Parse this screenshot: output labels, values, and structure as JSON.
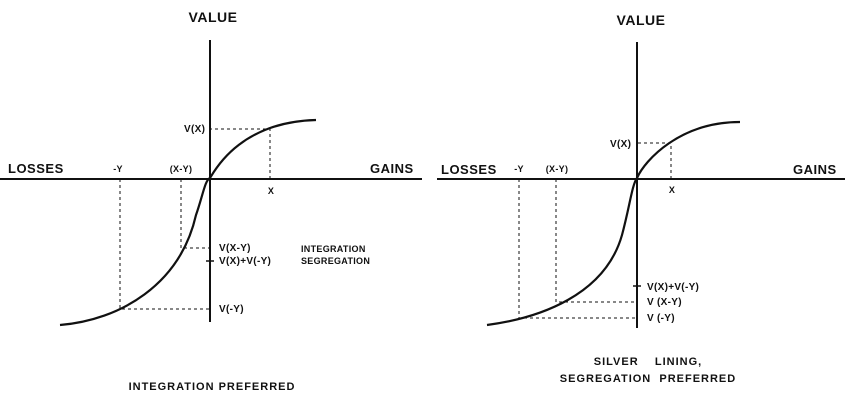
{
  "left": {
    "value_axis": "VALUE",
    "losses": "LOSSES",
    "gains": "GAINS",
    "labels": {
      "neg_y": "-Y",
      "x_minus_y": "(X-Y)",
      "x": "X",
      "v_x": "V(X)",
      "v_x_minus_y": "V(X-Y)",
      "v_sum": "V(X)+V(-Y)",
      "v_neg_y": "V(-Y)",
      "integration": "INTEGRATION",
      "segregation": "SEGREGATION"
    },
    "caption": "INTEGRATION PREFERRED"
  },
  "right": {
    "value_axis": "VALUE",
    "losses": "LOSSES",
    "gains": "GAINS",
    "labels": {
      "neg_y": "-Y",
      "x_minus_y": "(X-Y)",
      "x": "X",
      "v_x": "V(X)",
      "v_sum": "V(X)+V(-Y)",
      "v_x_minus_y": "V (X-Y)",
      "v_neg_y": "V (-Y)"
    },
    "caption_line1": "SILVER    LINING,",
    "caption_line2": "SEGREGATION  PREFERRED"
  }
}
